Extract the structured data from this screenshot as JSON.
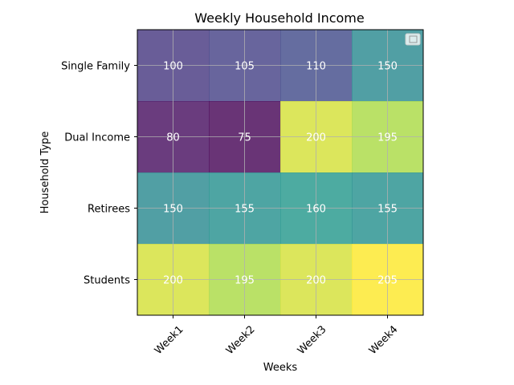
{
  "chart_data": {
    "type": "heatmap",
    "title": "Weekly Household Income",
    "xlabel": "Weeks",
    "ylabel": "Household Type",
    "x_categories": [
      "Week1",
      "Week2",
      "Week3",
      "Week4"
    ],
    "y_categories": [
      "Single Family",
      "Dual Income",
      "Retirees",
      "Students"
    ],
    "values": [
      [
        100,
        105,
        110,
        150
      ],
      [
        80,
        75,
        200,
        195
      ],
      [
        150,
        155,
        160,
        155
      ],
      [
        200,
        195,
        200,
        205
      ]
    ],
    "colormap": "viridis",
    "alpha": 0.8,
    "grid": true,
    "legend": "top-right (empty)",
    "colors": {
      "grid": "#b0b0b0",
      "cell_text": "#ffffff"
    }
  }
}
